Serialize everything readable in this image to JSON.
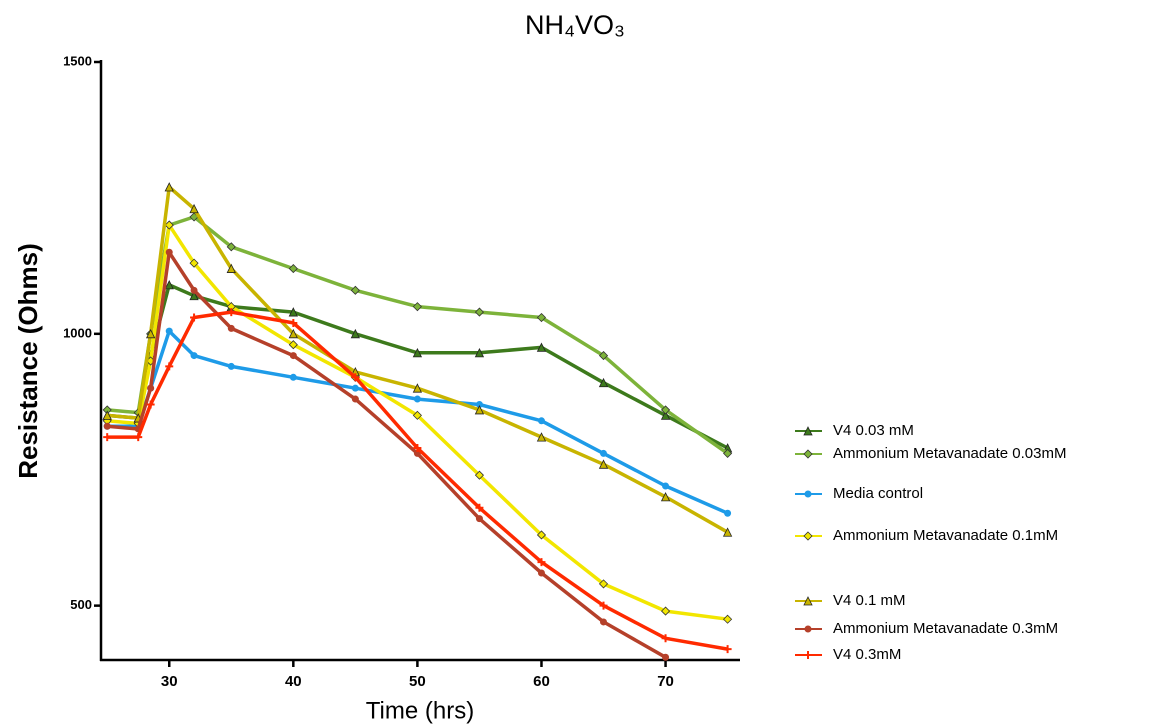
{
  "chart_data": {
    "type": "line",
    "title": "NH₄VO₃",
    "x_label": "Time (hrs)",
    "y_label": "Resistance (Ohms)",
    "x": [
      25,
      27.5,
      28.5,
      30,
      32,
      35,
      40,
      45,
      50,
      55,
      60,
      65,
      70,
      75
    ],
    "xlim": [
      24.5,
      76
    ],
    "ylim": [
      400,
      1500
    ],
    "xticks": [
      30,
      40,
      50,
      60,
      70
    ],
    "yticks": [
      500,
      1000,
      1500
    ],
    "series": [
      {
        "name": "V4 0.03 mM",
        "color": "#3d7a1c",
        "marker": "triangle",
        "values": [
          850,
          845,
          960,
          1090,
          1070,
          1050,
          1040,
          1000,
          965,
          965,
          975,
          910,
          850,
          790
        ]
      },
      {
        "name": "Ammonium Metavanadate 0.03mM",
        "color": "#7db33a",
        "marker": "diamond",
        "values": [
          860,
          855,
          1000,
          1200,
          1215,
          1160,
          1120,
          1080,
          1050,
          1040,
          1030,
          960,
          860,
          780
        ]
      },
      {
        "name": "Media control",
        "color": "#1e9be8",
        "marker": "circle",
        "values": [
          830,
          830,
          900,
          1005,
          960,
          940,
          920,
          900,
          880,
          870,
          840,
          780,
          720,
          670
        ]
      },
      {
        "name": "Ammonium Metavanadate 0.1mM",
        "color": "#f2e600",
        "marker": "diamond",
        "values": [
          840,
          835,
          950,
          1200,
          1130,
          1050,
          980,
          920,
          850,
          740,
          630,
          540,
          490,
          475
        ]
      },
      {
        "name": "V4 0.1 mM",
        "color": "#c8b400",
        "marker": "triangle",
        "values": [
          850,
          845,
          1000,
          1270,
          1230,
          1120,
          1000,
          930,
          900,
          860,
          810,
          760,
          700,
          635
        ]
      },
      {
        "name": "Ammonium Metavanadate 0.3mM",
        "color": "#b5402a",
        "marker": "circle",
        "values": [
          830,
          825,
          900,
          1150,
          1080,
          1010,
          960,
          880,
          780,
          660,
          560,
          470,
          405,
          null
        ]
      },
      {
        "name": "V4 0.3mM",
        "color": "#ff2a00",
        "marker": "plus",
        "values": [
          810,
          810,
          870,
          940,
          1030,
          1040,
          1020,
          920,
          790,
          680,
          580,
          500,
          440,
          420
        ]
      }
    ]
  }
}
